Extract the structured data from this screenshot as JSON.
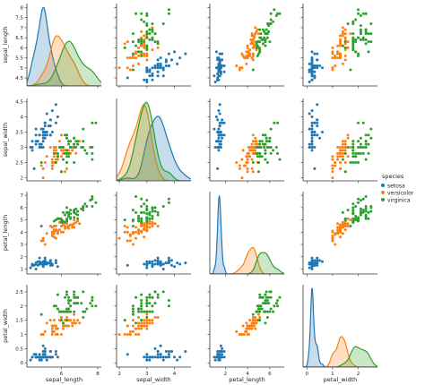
{
  "chart_data": {
    "type": "scatter",
    "figure_kind": "pairplot",
    "diagonal": "kde",
    "variables": [
      "sepal_length",
      "sepal_width",
      "petal_length",
      "petal_width"
    ],
    "axes": {
      "sepal_length": {
        "range": [
          4.1,
          8.2
        ],
        "ticks": [
          4.5,
          5.0,
          5.5,
          6.0,
          6.5,
          7.0,
          7.5,
          8.0
        ],
        "bottom_ticks": [
          4,
          6,
          8
        ]
      },
      "sepal_width": {
        "range": [
          1.9,
          4.6
        ],
        "ticks": [
          2.0,
          2.5,
          3.0,
          3.5,
          4.0,
          4.5
        ],
        "bottom_ticks": [
          2,
          3,
          4,
          5
        ]
      },
      "petal_length": {
        "range": [
          0.6,
          7.3
        ],
        "ticks": [
          1,
          2,
          3,
          4,
          5,
          6,
          7
        ],
        "bottom_ticks": [
          2,
          4,
          6,
          8
        ]
      },
      "petal_width": {
        "range": [
          -0.15,
          2.75
        ],
        "ticks": [
          0.0,
          0.5,
          1.0,
          1.5,
          2.0,
          2.5
        ],
        "bottom_ticks": [
          0,
          1,
          2,
          3
        ]
      }
    },
    "legend": {
      "title": "species",
      "placement": "right",
      "entries": [
        "setosa",
        "versicolor",
        "virginica"
      ]
    },
    "series": [
      {
        "name": "setosa",
        "color": "#1f77b4",
        "points": [
          [
            5.1,
            3.5,
            1.4,
            0.2
          ],
          [
            4.9,
            3.0,
            1.4,
            0.2
          ],
          [
            4.7,
            3.2,
            1.3,
            0.2
          ],
          [
            4.6,
            3.1,
            1.5,
            0.2
          ],
          [
            5.0,
            3.6,
            1.4,
            0.2
          ],
          [
            5.4,
            3.9,
            1.7,
            0.4
          ],
          [
            4.6,
            3.4,
            1.4,
            0.3
          ],
          [
            5.0,
            3.4,
            1.5,
            0.2
          ],
          [
            4.4,
            2.9,
            1.4,
            0.2
          ],
          [
            4.9,
            3.1,
            1.5,
            0.1
          ],
          [
            5.4,
            3.7,
            1.5,
            0.2
          ],
          [
            4.8,
            3.4,
            1.6,
            0.2
          ],
          [
            4.8,
            3.0,
            1.4,
            0.1
          ],
          [
            4.3,
            3.0,
            1.1,
            0.1
          ],
          [
            5.8,
            4.0,
            1.2,
            0.2
          ],
          [
            5.7,
            4.4,
            1.5,
            0.4
          ],
          [
            5.4,
            3.9,
            1.3,
            0.4
          ],
          [
            5.1,
            3.5,
            1.4,
            0.3
          ],
          [
            5.7,
            3.8,
            1.7,
            0.3
          ],
          [
            5.1,
            3.8,
            1.5,
            0.3
          ],
          [
            5.4,
            3.4,
            1.7,
            0.2
          ],
          [
            5.1,
            3.7,
            1.5,
            0.4
          ],
          [
            4.6,
            3.6,
            1.0,
            0.2
          ],
          [
            5.1,
            3.3,
            1.7,
            0.5
          ],
          [
            4.8,
            3.4,
            1.9,
            0.2
          ],
          [
            5.0,
            3.0,
            1.6,
            0.2
          ],
          [
            5.0,
            3.4,
            1.6,
            0.4
          ],
          [
            5.2,
            3.5,
            1.5,
            0.2
          ],
          [
            5.2,
            3.4,
            1.4,
            0.2
          ],
          [
            4.7,
            3.2,
            1.6,
            0.2
          ],
          [
            4.8,
            3.1,
            1.6,
            0.2
          ],
          [
            5.4,
            3.4,
            1.5,
            0.4
          ],
          [
            5.2,
            4.1,
            1.5,
            0.1
          ],
          [
            5.5,
            4.2,
            1.4,
            0.2
          ],
          [
            4.9,
            3.1,
            1.5,
            0.2
          ],
          [
            5.0,
            3.2,
            1.2,
            0.2
          ],
          [
            5.5,
            3.5,
            1.3,
            0.2
          ],
          [
            4.9,
            3.6,
            1.4,
            0.1
          ],
          [
            4.4,
            3.0,
            1.3,
            0.2
          ],
          [
            5.1,
            3.4,
            1.5,
            0.2
          ],
          [
            5.0,
            3.5,
            1.3,
            0.3
          ],
          [
            4.5,
            2.3,
            1.3,
            0.3
          ],
          [
            4.4,
            3.2,
            1.3,
            0.2
          ],
          [
            5.0,
            3.5,
            1.6,
            0.6
          ],
          [
            5.1,
            3.8,
            1.9,
            0.4
          ],
          [
            4.8,
            3.0,
            1.4,
            0.3
          ],
          [
            5.1,
            3.8,
            1.6,
            0.2
          ],
          [
            4.6,
            3.2,
            1.4,
            0.2
          ],
          [
            5.3,
            3.7,
            1.5,
            0.2
          ],
          [
            5.0,
            3.3,
            1.4,
            0.2
          ]
        ]
      },
      {
        "name": "versicolor",
        "color": "#ff7f0e",
        "points": [
          [
            7.0,
            3.2,
            4.7,
            1.4
          ],
          [
            6.4,
            3.2,
            4.5,
            1.5
          ],
          [
            6.9,
            3.1,
            4.9,
            1.5
          ],
          [
            5.5,
            2.3,
            4.0,
            1.3
          ],
          [
            6.5,
            2.8,
            4.6,
            1.5
          ],
          [
            5.7,
            2.8,
            4.5,
            1.3
          ],
          [
            6.3,
            3.3,
            4.7,
            1.6
          ],
          [
            4.9,
            2.4,
            3.3,
            1.0
          ],
          [
            6.6,
            2.9,
            4.6,
            1.3
          ],
          [
            5.2,
            2.7,
            3.9,
            1.4
          ],
          [
            5.0,
            2.0,
            3.5,
            1.0
          ],
          [
            5.9,
            3.0,
            4.2,
            1.5
          ],
          [
            6.0,
            2.2,
            4.0,
            1.0
          ],
          [
            6.1,
            2.9,
            4.7,
            1.4
          ],
          [
            5.6,
            2.9,
            3.6,
            1.3
          ],
          [
            6.7,
            3.1,
            4.4,
            1.4
          ],
          [
            5.6,
            3.0,
            4.5,
            1.5
          ],
          [
            5.8,
            2.7,
            4.1,
            1.0
          ],
          [
            6.2,
            2.2,
            4.5,
            1.5
          ],
          [
            5.6,
            2.5,
            3.9,
            1.1
          ],
          [
            5.9,
            3.2,
            4.8,
            1.8
          ],
          [
            6.1,
            2.8,
            4.0,
            1.3
          ],
          [
            6.3,
            2.5,
            4.9,
            1.5
          ],
          [
            6.1,
            2.8,
            4.7,
            1.2
          ],
          [
            6.4,
            2.9,
            4.3,
            1.3
          ],
          [
            6.6,
            3.0,
            4.4,
            1.4
          ],
          [
            6.8,
            2.8,
            4.8,
            1.4
          ],
          [
            6.7,
            3.0,
            5.0,
            1.7
          ],
          [
            6.0,
            2.9,
            4.5,
            1.5
          ],
          [
            5.7,
            2.6,
            3.5,
            1.0
          ],
          [
            5.5,
            2.4,
            3.8,
            1.1
          ],
          [
            5.5,
            2.4,
            3.7,
            1.0
          ],
          [
            5.8,
            2.7,
            3.9,
            1.2
          ],
          [
            6.0,
            2.7,
            5.1,
            1.6
          ],
          [
            5.4,
            3.0,
            4.5,
            1.5
          ],
          [
            6.0,
            3.4,
            4.5,
            1.6
          ],
          [
            6.7,
            3.1,
            4.7,
            1.5
          ],
          [
            6.3,
            2.3,
            4.4,
            1.3
          ],
          [
            5.6,
            3.0,
            4.1,
            1.3
          ],
          [
            5.5,
            2.5,
            4.0,
            1.3
          ],
          [
            5.5,
            2.6,
            4.4,
            1.2
          ],
          [
            6.1,
            3.0,
            4.6,
            1.4
          ],
          [
            5.8,
            2.6,
            4.0,
            1.2
          ],
          [
            5.0,
            2.3,
            3.3,
            1.0
          ],
          [
            5.6,
            2.7,
            4.2,
            1.3
          ],
          [
            5.7,
            3.0,
            4.2,
            1.2
          ],
          [
            5.7,
            2.9,
            4.2,
            1.3
          ],
          [
            6.2,
            2.9,
            4.3,
            1.3
          ],
          [
            5.1,
            2.5,
            3.0,
            1.1
          ],
          [
            5.7,
            2.8,
            4.1,
            1.3
          ]
        ]
      },
      {
        "name": "virginica",
        "color": "#2ca02c",
        "points": [
          [
            6.3,
            3.3,
            6.0,
            2.5
          ],
          [
            5.8,
            2.7,
            5.1,
            1.9
          ],
          [
            7.1,
            3.0,
            5.9,
            2.1
          ],
          [
            6.3,
            2.9,
            5.6,
            1.8
          ],
          [
            6.5,
            3.0,
            5.8,
            2.2
          ],
          [
            7.6,
            3.0,
            6.6,
            2.1
          ],
          [
            4.9,
            2.5,
            4.5,
            1.7
          ],
          [
            7.3,
            2.9,
            6.3,
            1.8
          ],
          [
            6.7,
            2.5,
            5.8,
            1.8
          ],
          [
            7.2,
            3.6,
            6.1,
            2.5
          ],
          [
            6.5,
            3.2,
            5.1,
            2.0
          ],
          [
            6.4,
            2.7,
            5.3,
            1.9
          ],
          [
            6.8,
            3.0,
            5.5,
            2.1
          ],
          [
            5.7,
            2.5,
            5.0,
            2.0
          ],
          [
            5.8,
            2.8,
            5.1,
            2.4
          ],
          [
            6.4,
            3.2,
            5.3,
            2.3
          ],
          [
            6.5,
            3.0,
            5.5,
            1.8
          ],
          [
            7.7,
            3.8,
            6.7,
            2.2
          ],
          [
            7.7,
            2.6,
            6.9,
            2.3
          ],
          [
            6.0,
            2.2,
            5.0,
            1.5
          ],
          [
            6.9,
            3.2,
            5.7,
            2.3
          ],
          [
            5.6,
            2.8,
            4.9,
            2.0
          ],
          [
            7.7,
            2.8,
            6.7,
            2.0
          ],
          [
            6.3,
            2.7,
            4.9,
            1.8
          ],
          [
            6.7,
            3.3,
            5.7,
            2.1
          ],
          [
            7.2,
            3.2,
            6.0,
            1.8
          ],
          [
            6.2,
            2.8,
            4.8,
            1.8
          ],
          [
            6.1,
            3.0,
            4.9,
            1.8
          ],
          [
            6.4,
            2.8,
            5.6,
            2.1
          ],
          [
            7.2,
            3.0,
            5.8,
            1.6
          ],
          [
            7.4,
            2.8,
            6.1,
            1.9
          ],
          [
            7.9,
            3.8,
            6.4,
            2.0
          ],
          [
            6.4,
            2.8,
            5.6,
            2.2
          ],
          [
            6.3,
            2.8,
            5.1,
            1.5
          ],
          [
            6.1,
            2.6,
            5.6,
            1.4
          ],
          [
            7.7,
            3.0,
            6.1,
            2.3
          ],
          [
            6.3,
            3.4,
            5.6,
            2.4
          ],
          [
            6.4,
            3.1,
            5.5,
            1.8
          ],
          [
            6.0,
            3.0,
            4.8,
            1.8
          ],
          [
            6.9,
            3.1,
            5.4,
            2.1
          ],
          [
            6.7,
            3.1,
            5.6,
            2.4
          ],
          [
            6.9,
            3.1,
            5.1,
            2.3
          ],
          [
            5.8,
            2.7,
            5.1,
            1.9
          ],
          [
            6.8,
            3.2,
            5.9,
            2.3
          ],
          [
            6.7,
            3.3,
            5.7,
            2.5
          ],
          [
            6.7,
            3.0,
            5.2,
            2.3
          ],
          [
            6.3,
            2.5,
            5.0,
            1.9
          ],
          [
            6.5,
            3.0,
            5.2,
            2.0
          ],
          [
            6.2,
            3.4,
            5.4,
            2.3
          ],
          [
            5.9,
            3.0,
            5.1,
            1.8
          ]
        ]
      }
    ]
  }
}
